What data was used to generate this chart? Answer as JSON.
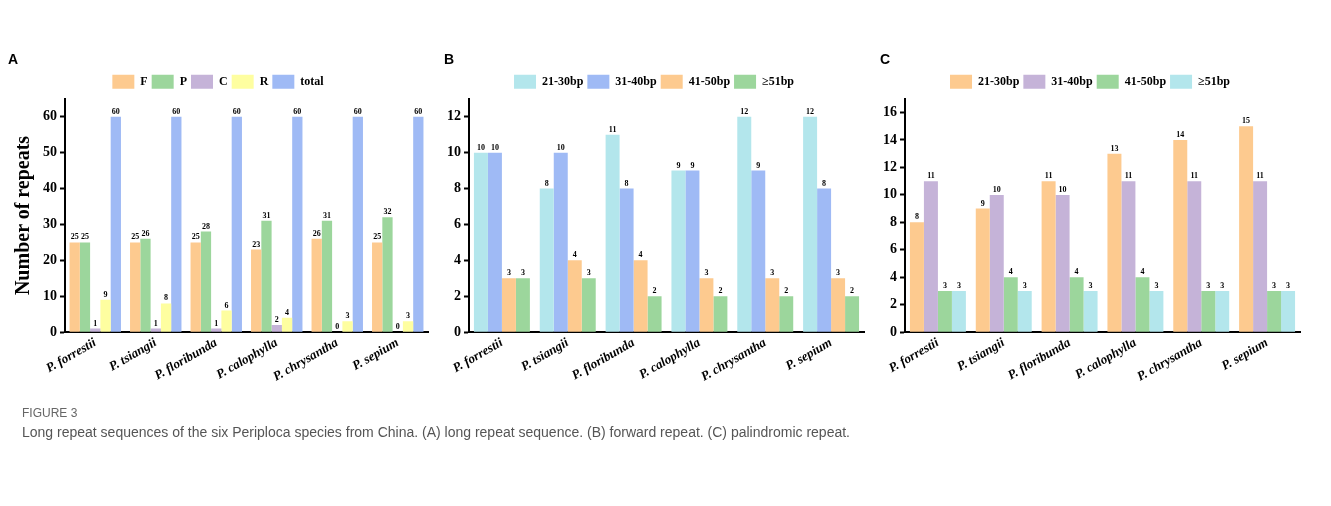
{
  "chart_data": [
    {
      "type": "bar",
      "title": "A",
      "ylabel": "Number of repeats",
      "categories": [
        "P. forrestii",
        "P. tsiangii",
        "P. floribunda",
        "P. calophylla",
        "P. chrysantha",
        "P. sepium"
      ],
      "series": [
        {
          "name": "F",
          "color": "#fdca8f",
          "values": [
            25,
            25,
            25,
            23,
            26,
            25
          ]
        },
        {
          "name": "P",
          "color": "#9cd69c",
          "values": [
            25,
            26,
            28,
            31,
            31,
            32
          ]
        },
        {
          "name": "C",
          "color": "#c5b3d8",
          "values": [
            1,
            1,
            1,
            2,
            0,
            0
          ]
        },
        {
          "name": "R",
          "color": "#fefea0",
          "values": [
            9,
            8,
            6,
            4,
            3,
            3
          ]
        },
        {
          "name": "total",
          "color": "#9fbaf5",
          "values": [
            60,
            60,
            60,
            60,
            60,
            60
          ]
        }
      ],
      "ylim": [
        0,
        65
      ],
      "yticks": [
        0,
        10,
        20,
        30,
        40,
        50,
        60
      ],
      "grid": false,
      "legend": "top",
      "data_labels": true,
      "annotations": [
        "FIGURE 3",
        "Long repeat sequences of the six Periploca species from China. (A) long repeat sequence. (B) forward repeat. (C) palindromic repeat."
      ]
    },
    {
      "type": "bar",
      "title": "B",
      "categories": [
        "P. forrestii",
        "P. tsiangii",
        "P. floribunda",
        "P. calophylla",
        "P. chrysantha",
        "P. sepium"
      ],
      "series": [
        {
          "name": "21-30bp",
          "color": "#b3e6ec",
          "values": [
            10,
            8,
            11,
            9,
            12,
            12
          ]
        },
        {
          "name": "31-40bp",
          "color": "#9fbaf5",
          "values": [
            10,
            10,
            8,
            9,
            9,
            8
          ]
        },
        {
          "name": "41-50bp",
          "color": "#fdca8f",
          "values": [
            3,
            4,
            4,
            3,
            3,
            3
          ]
        },
        {
          "name": "≥51bp",
          "color": "#9cd69c",
          "values": [
            3,
            3,
            2,
            2,
            2,
            2
          ]
        }
      ],
      "ylim": [
        0,
        13
      ],
      "yticks": [
        0,
        2,
        4,
        6,
        8,
        10,
        12
      ],
      "grid": false,
      "legend": "top",
      "data_labels": true
    },
    {
      "type": "bar",
      "title": "C",
      "categories": [
        "P. forrestii",
        "P. tsiangii",
        "P. floribunda",
        "P. calophylla",
        "P. chrysantha",
        "P. sepium"
      ],
      "series": [
        {
          "name": "21-30bp",
          "color": "#fdca8f",
          "values": [
            8,
            9,
            11,
            13,
            14,
            15
          ]
        },
        {
          "name": "31-40bp",
          "color": "#c5b3d8",
          "values": [
            11,
            10,
            10,
            11,
            11,
            11
          ]
        },
        {
          "name": "41-50bp",
          "color": "#9cd69c",
          "values": [
            3,
            4,
            4,
            4,
            3,
            3
          ]
        },
        {
          "name": "≥51bp",
          "color": "#b3e6ec",
          "values": [
            3,
            3,
            3,
            3,
            3,
            3
          ]
        }
      ],
      "ylim": [
        0,
        17
      ],
      "yticks": [
        0,
        2,
        4,
        6,
        8,
        10,
        12,
        14,
        16
      ],
      "grid": false,
      "legend": "top",
      "data_labels": true
    }
  ]
}
